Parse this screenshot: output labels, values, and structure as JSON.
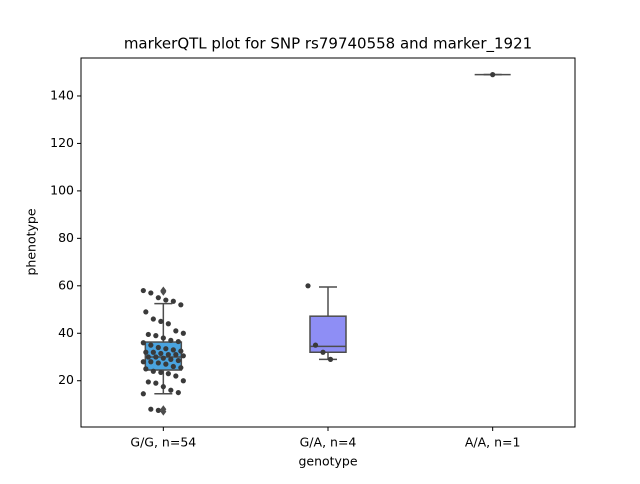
{
  "chart_data": {
    "type": "box",
    "title": "markerQTL plot for SNP rs79740558 and marker_1921",
    "xlabel": "genotype",
    "ylabel": "phenotype",
    "categories": [
      "G/G, n=54",
      "G/A, n=4",
      "A/A, n=1"
    ],
    "series": [
      {
        "color": "#4aa3df",
        "whislo": 14.5,
        "q1": 24.5,
        "med": 30,
        "q3": 36.3,
        "whishi": 52.5,
        "fliers": [
          58,
          57.5,
          8,
          7
        ],
        "points": [
          58,
          57,
          55,
          54,
          53.5,
          52,
          49,
          46,
          45,
          44,
          41,
          40,
          39.5,
          39,
          38,
          37,
          36.5,
          36,
          35,
          34,
          33.5,
          33,
          32.5,
          32,
          32,
          31.5,
          31,
          31,
          30.5,
          30,
          30,
          29.5,
          29,
          28.5,
          28,
          28,
          27.5,
          27,
          26,
          25.5,
          25,
          24,
          23.5,
          23,
          22,
          20,
          19.5,
          19,
          17.5,
          16,
          15,
          14.5,
          8,
          7.5
        ]
      },
      {
        "color": "#8e8ef5",
        "whislo": 29,
        "q1": 32,
        "med": 34.5,
        "q3": 47.2,
        "whishi": 59.5,
        "fliers": [],
        "points": [
          60,
          35,
          32,
          29
        ]
      },
      {
        "color": "#7fd07f",
        "whislo": 149,
        "q1": 149,
        "med": 149,
        "q3": 149,
        "whishi": 149,
        "fliers": [],
        "points": [
          149
        ]
      }
    ],
    "point_color": "#3a3a3a",
    "ylim": [
      0.5,
      156
    ],
    "yticks": [
      20,
      40,
      60,
      80,
      100,
      120,
      140
    ]
  }
}
